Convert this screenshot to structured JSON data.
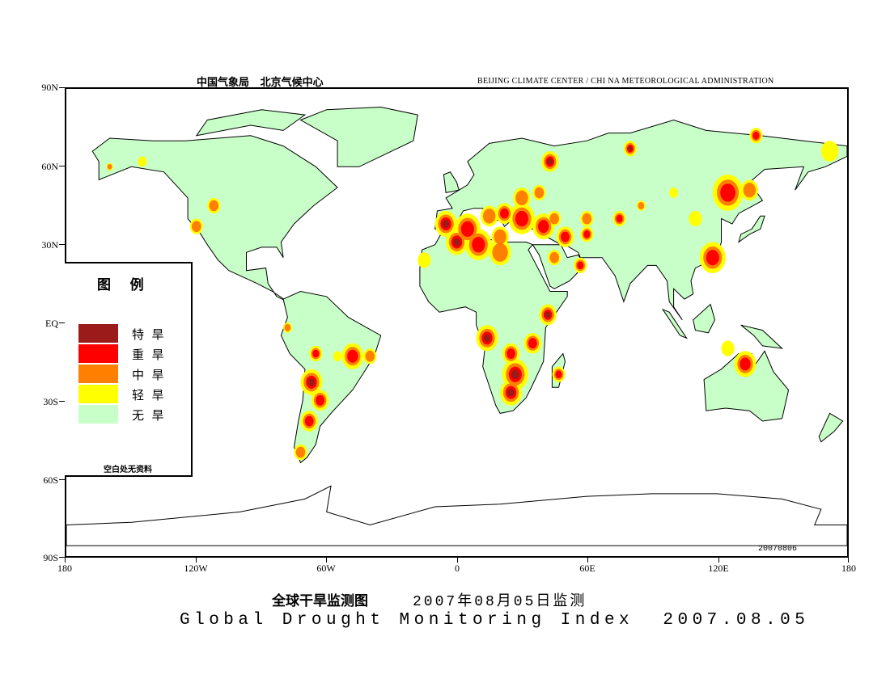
{
  "header": {
    "org_cn": "中国气象局   北京气候中心",
    "org_en": "BEIJING CLIMATE CENTER / CHI NA METEOROLOGICAL ADMINISTRATION"
  },
  "axes": {
    "lat_labels": [
      "90N",
      "60N",
      "30N",
      "EQ",
      "30S",
      "60S",
      "90S"
    ],
    "lon_labels": [
      "180",
      "120W",
      "60W",
      "0",
      "60E",
      "120E",
      "180"
    ]
  },
  "legend": {
    "title": "图    例",
    "items": [
      {
        "label": "特  旱",
        "color": "#9b1a1a"
      },
      {
        "label": "重  旱",
        "color": "#ff0000"
      },
      {
        "label": "中  旱",
        "color": "#ff8000"
      },
      {
        "label": "轻  旱",
        "color": "#ffff00"
      },
      {
        "label": "无  旱",
        "color": "#c8ffc8"
      }
    ],
    "note": "空白处无资料"
  },
  "map": {
    "date_stamp": "20070806",
    "land_color": "#c8ffc8"
  },
  "title": {
    "cn": "全球干旱监测图",
    "cn_date": "2007年08月05日监测",
    "en": "Global Drought Monitoring Index  2007.08.05"
  }
}
